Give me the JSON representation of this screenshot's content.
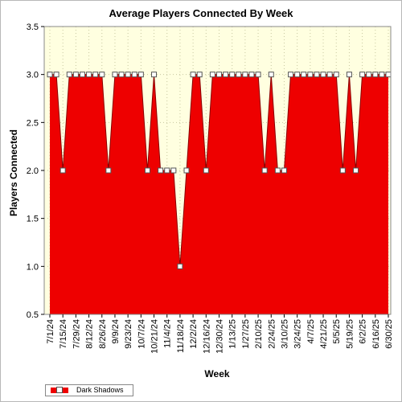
{
  "chart_data": {
    "type": "area",
    "title": "Average Players Connected By Week",
    "xlabel": "Week",
    "ylabel": "Players Connected",
    "ylim": [
      0.5,
      3.5
    ],
    "yticks": [
      "0.5",
      "1.0",
      "1.5",
      "2.0",
      "2.5",
      "3.0",
      "3.5"
    ],
    "xtick_labels": [
      "7/1/24",
      "7/15/24",
      "7/29/24",
      "8/12/24",
      "8/26/24",
      "9/9/24",
      "9/23/24",
      "10/7/24",
      "10/21/24",
      "11/4/24",
      "11/18/24",
      "12/2/24",
      "12/16/24",
      "12/30/24",
      "1/13/25",
      "1/27/25",
      "2/10/25",
      "2/24/25",
      "3/10/25",
      "3/24/25",
      "4/7/25",
      "4/21/25",
      "5/5/25",
      "5/19/25",
      "6/2/25",
      "6/16/25",
      "6/30/25"
    ],
    "x": [
      "7/1/24",
      "7/8/24",
      "7/15/24",
      "7/22/24",
      "7/29/24",
      "8/5/24",
      "8/12/24",
      "8/19/24",
      "8/26/24",
      "9/2/24",
      "9/9/24",
      "9/16/24",
      "9/23/24",
      "9/30/24",
      "10/7/24",
      "10/14/24",
      "10/21/24",
      "10/28/24",
      "11/4/24",
      "11/11/24",
      "11/18/24",
      "11/25/24",
      "12/2/24",
      "12/9/24",
      "12/16/24",
      "12/23/24",
      "12/30/24",
      "1/6/25",
      "1/13/25",
      "1/20/25",
      "1/27/25",
      "2/3/25",
      "2/10/25",
      "2/17/25",
      "2/24/25",
      "3/3/25",
      "3/10/25",
      "3/17/25",
      "3/24/25",
      "3/31/25",
      "4/7/25",
      "4/14/25",
      "4/21/25",
      "4/28/25",
      "5/5/25",
      "5/12/25",
      "5/19/25",
      "5/26/25",
      "6/2/25",
      "6/9/25",
      "6/16/25",
      "6/23/25",
      "6/30/25"
    ],
    "series": [
      {
        "name": "Dark Shadows",
        "color": "#ee0000",
        "values": [
          3,
          3,
          2,
          3,
          3,
          3,
          3,
          3,
          3,
          2,
          3,
          3,
          3,
          3,
          3,
          2,
          3,
          2,
          2,
          2,
          1,
          2,
          3,
          3,
          2,
          3,
          3,
          3,
          3,
          3,
          3,
          3,
          3,
          2,
          3,
          2,
          2,
          3,
          3,
          3,
          3,
          3,
          3,
          3,
          3,
          2,
          3,
          2,
          3,
          3,
          3,
          3,
          3
        ]
      }
    ],
    "plot_background": "#ffffe0",
    "grid": true,
    "legend_position": "bottom-left"
  }
}
